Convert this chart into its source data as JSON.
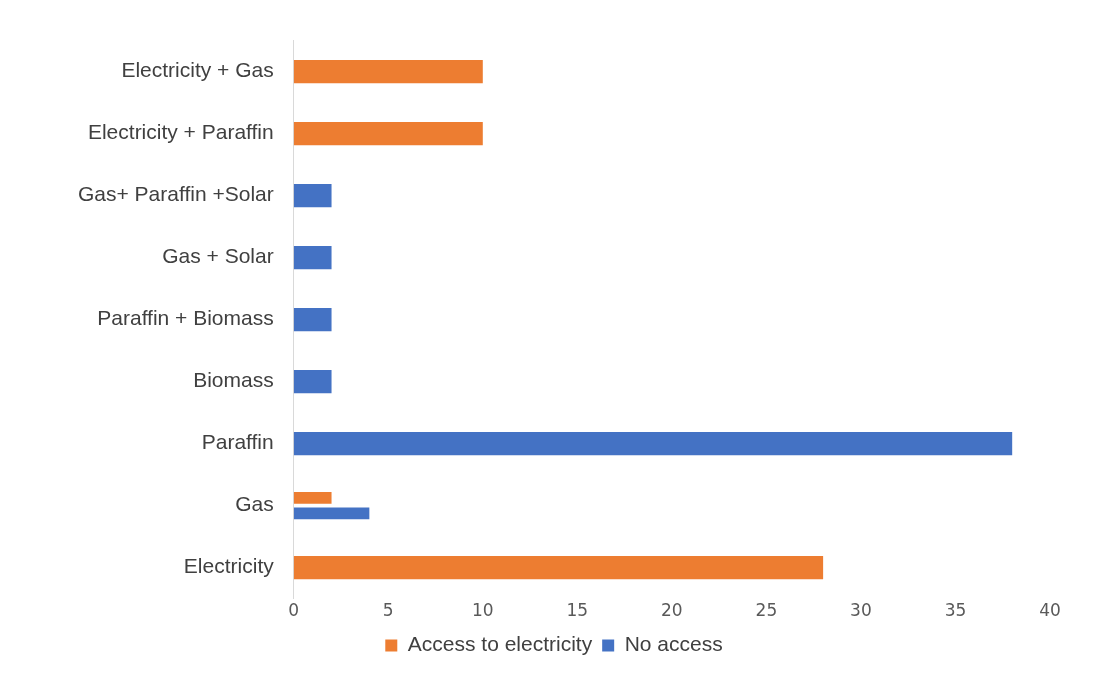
{
  "chart_data": {
    "type": "bar",
    "orientation": "horizontal",
    "categories": [
      "Electricity + Gas",
      "Electricity + Paraffin",
      "Gas+ Paraffin +Solar",
      "Gas + Solar",
      "Paraffin + Biomass",
      "Biomass",
      "Paraffin",
      "Gas",
      "Electricity"
    ],
    "series": [
      {
        "name": "Access to electricity",
        "color": "#ed7d31",
        "values": [
          10,
          10,
          null,
          null,
          null,
          null,
          null,
          2,
          28
        ]
      },
      {
        "name": "No access",
        "color": "#4472c4",
        "values": [
          null,
          null,
          2,
          2,
          2,
          2,
          38,
          4,
          null
        ]
      }
    ],
    "xlim": [
      0,
      40
    ],
    "xticks": [
      0,
      5,
      10,
      15,
      20,
      25,
      30,
      35,
      40
    ],
    "grid": false,
    "legend": "bottom"
  }
}
